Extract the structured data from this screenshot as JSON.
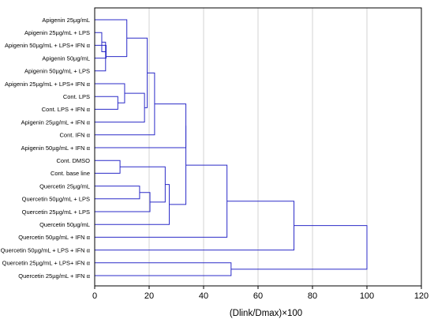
{
  "chart_data": {
    "type": "dendrogram",
    "orientation": "horizontal",
    "title": "",
    "xlabel": "(Dlink/Dmax)×100",
    "ylabel": "",
    "xlim": [
      0,
      120
    ],
    "xticks": [
      0,
      20,
      40,
      60,
      80,
      100,
      120
    ],
    "grid": true,
    "colors": {
      "tree": "#2b2bc8",
      "grid": "#c8c8c8",
      "frame": "#000000"
    },
    "leaves": [
      "Apigenin 25µg/mL",
      "Apigenin 25µg/mL + LPS",
      "Apigenin 50µg/mL + LPS+ IFN α",
      "Apigenin 50µg/mL",
      "Apigenin 50µg/mL + LPS",
      "Apigenin 25µg/mL + LPS+ IFN α",
      "Cont. LPS",
      "Cont. LPS + IFN α",
      "Apigenin 25µg/mL + IFN α",
      "Cont. IFN α",
      "Apigenin 50µg/mL + IFN α",
      "Cont. DMSO",
      "Cont. base line",
      "Quercetin 25µg/mL",
      "Quercetin 50µg/mL + LPS",
      "Quercetin 25µg/mL + LPS",
      "Quercetin 50µg/mL",
      "Quercetin 50µg/mL + IFN α",
      "Quercetin 50µg/mL + LPS + IFN α",
      "Quercetin 25µg/mL + LPS+ IFN α",
      "Quercetin 25µg/mL + IFN α"
    ],
    "merges": [
      {
        "a": "L2",
        "b": "L3",
        "height": 4.2
      },
      {
        "a": "L1",
        "b": "N0",
        "height": 2.6
      },
      {
        "a": "L4",
        "b": "N1",
        "height": 4.0
      },
      {
        "a": "L0",
        "b": "N2",
        "height": 11.8
      },
      {
        "a": "L6",
        "b": "L7",
        "height": 8.5
      },
      {
        "a": "L5",
        "b": "N4",
        "height": 11.0
      },
      {
        "a": "N5",
        "b": "L8",
        "height": 18.3
      },
      {
        "a": "N3",
        "b": "N6",
        "height": 19.3
      },
      {
        "a": "N7",
        "b": "L9",
        "height": 22.0
      },
      {
        "a": "L11",
        "b": "L12",
        "height": 9.3
      },
      {
        "a": "L13",
        "b": "L14",
        "height": 16.5
      },
      {
        "a": "N10",
        "b": "L15",
        "height": 20.3
      },
      {
        "a": "N9",
        "b": "N11",
        "height": 25.9
      },
      {
        "a": "N12",
        "b": "L16",
        "height": 27.4
      },
      {
        "a": "N8",
        "b": "L10",
        "height": 33.5
      },
      {
        "a": "N14",
        "b": "N13",
        "height": 33.5
      },
      {
        "a": "N15",
        "b": "L17",
        "height": 48.6
      },
      {
        "a": "N16",
        "b": "L18",
        "height": 73.2
      },
      {
        "a": "L19",
        "b": "L20",
        "height": 50.1
      },
      {
        "a": "N17",
        "b": "N18",
        "height": 100.0
      }
    ]
  }
}
